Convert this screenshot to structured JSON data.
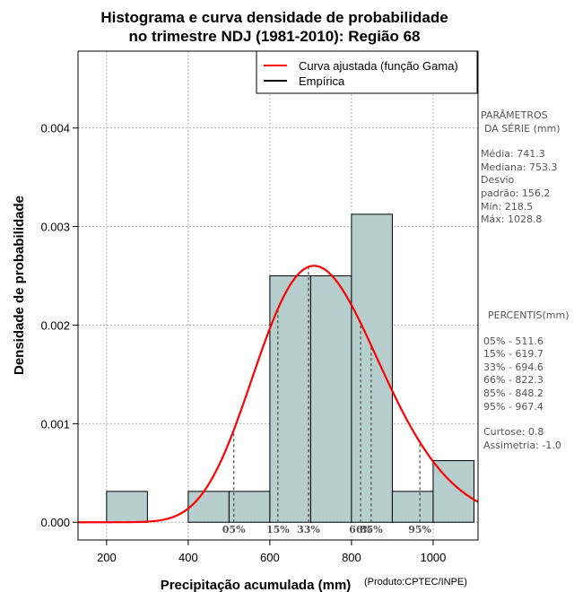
{
  "chart_data": {
    "type": "bar",
    "title": "Histograma e curva densidade de probabilidade",
    "subtitle": "no trimestre NDJ (1981-2010): Região 68",
    "xlabel": "Precipitação acumulada (mm)",
    "ylabel": "Densidade de probabilidade",
    "credit": "(Produto:CPTEC/INPE)",
    "xlim": [
      130,
      1110
    ],
    "ylim": [
      -0.00018,
      0.00478
    ],
    "xticks": [
      200,
      400,
      600,
      800,
      1000
    ],
    "xtick_labels": [
      "200",
      "400",
      "600",
      "800",
      "1000"
    ],
    "yticks": [
      0,
      0.001,
      0.002,
      0.003,
      0.004
    ],
    "ytick_labels": [
      "0.000",
      "0.001",
      "0.002",
      "0.003",
      "0.004"
    ],
    "grid": true,
    "bins": [
      {
        "x0": 200,
        "x1": 300,
        "density": 0.000313
      },
      {
        "x0": 400,
        "x1": 500,
        "density": 0.000313
      },
      {
        "x0": 500,
        "x1": 600,
        "density": 0.000313
      },
      {
        "x0": 600,
        "x1": 700,
        "density": 0.0025
      },
      {
        "x0": 700,
        "x1": 800,
        "density": 0.0025
      },
      {
        "x0": 800,
        "x1": 900,
        "density": 0.003125
      },
      {
        "x0": 900,
        "x1": 1000,
        "density": 0.000313
      },
      {
        "x0": 1000,
        "x1": 1100,
        "density": 0.000625
      }
    ],
    "gamma_fit": {
      "shape": 22.5,
      "scale": 32.94,
      "color": "#ff0000"
    },
    "percentiles": [
      {
        "label": "05%",
        "value": 511.6
      },
      {
        "label": "15%",
        "value": 619.7
      },
      {
        "label": "33%",
        "value": 694.6
      },
      {
        "label": "66%",
        "value": 822.3
      },
      {
        "label": "85%",
        "value": 848.2
      },
      {
        "label": "95%",
        "value": 967.4
      }
    ],
    "legend": {
      "position": "top-right",
      "entries": [
        {
          "label": "Curva ajustada (função Gama)",
          "color": "#ff0000"
        },
        {
          "label": "Empírica",
          "color": "#000000"
        }
      ]
    },
    "colors": {
      "bar_fill": "#b6cfce",
      "curve": "#ff0000",
      "grid": "#b3b3b3"
    }
  },
  "side_panel": {
    "params_title_1": "PARÂMETROS",
    "params_title_2": "DA SÉRIE (mm)",
    "params": [
      "Média:  741.3",
      "Mediana:  753.3",
      "Desvio",
      "padrão:  156.2",
      "Mín:  218.5",
      "Máx:  1028.8"
    ],
    "percentis_title": "PERCENTIS(mm)",
    "percentis": [
      "05% -  511.6",
      "15% -  619.7",
      "33% -  694.6",
      "66% -  822.3",
      "85% -  848.2",
      "95% -  967.4"
    ],
    "stats": [
      "Curtose:  0.8",
      "Assimetria:  -1.0"
    ]
  }
}
